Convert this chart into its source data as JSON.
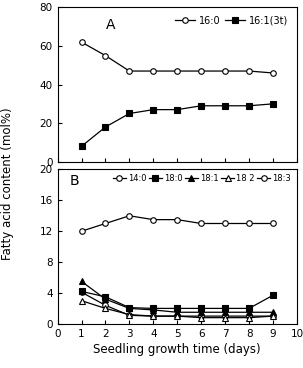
{
  "x": [
    1,
    2,
    3,
    4,
    5,
    6,
    7,
    8,
    9
  ],
  "panel_A": {
    "label": "A",
    "series": [
      {
        "key": "16:0",
        "label": "16:0",
        "marker": "o",
        "markerfacecolor": "white",
        "values": [
          62,
          55,
          47,
          47,
          47,
          47,
          47,
          47,
          46
        ]
      },
      {
        "key": "16:1(3t)",
        "label": "16:1(3t)",
        "marker": "s",
        "markerfacecolor": "black",
        "values": [
          8,
          18,
          25,
          27,
          27,
          29,
          29,
          29,
          30
        ]
      }
    ],
    "ylim": [
      0,
      80
    ],
    "yticks": [
      0,
      20,
      40,
      60,
      80
    ]
  },
  "panel_B": {
    "label": "B",
    "series": [
      {
        "key": "14:0",
        "label": "14:0",
        "marker": "o",
        "markerfacecolor": "white",
        "values": [
          4.1,
          2.4,
          1.1,
          1.0,
          1.0,
          1.0,
          1.0,
          1.0,
          1.0
        ]
      },
      {
        "key": "18:0",
        "label": "18:0",
        "marker": "s",
        "markerfacecolor": "black",
        "values": [
          4.2,
          3.5,
          2.1,
          2.0,
          2.0,
          2.0,
          2.0,
          2.0,
          3.7
        ]
      },
      {
        "key": "18:1",
        "label": "18:1",
        "marker": "^",
        "markerfacecolor": "black",
        "values": [
          5.5,
          3.2,
          2.0,
          1.8,
          1.5,
          1.5,
          1.5,
          1.5,
          1.5
        ]
      },
      {
        "key": "18:2",
        "label": "18 2",
        "marker": "^",
        "markerfacecolor": "white",
        "values": [
          3.0,
          2.0,
          1.2,
          1.0,
          1.0,
          0.8,
          0.8,
          0.8,
          1.0
        ]
      },
      {
        "key": "18:3",
        "label": "18:3",
        "marker": "o",
        "markerfacecolor": "white",
        "values": [
          12.0,
          13.0,
          14.0,
          13.5,
          13.5,
          13.0,
          13.0,
          13.0,
          13.0
        ]
      }
    ],
    "ylim": [
      0,
      20
    ],
    "yticks": [
      0,
      4,
      8,
      12,
      16,
      20
    ]
  },
  "xlabel": "Seedling growth time (days)",
  "ylabel": "Fatty acid content (mol%)",
  "xlim": [
    0,
    10
  ],
  "xticks": [
    0,
    1,
    2,
    3,
    4,
    5,
    6,
    7,
    8,
    9,
    10
  ]
}
